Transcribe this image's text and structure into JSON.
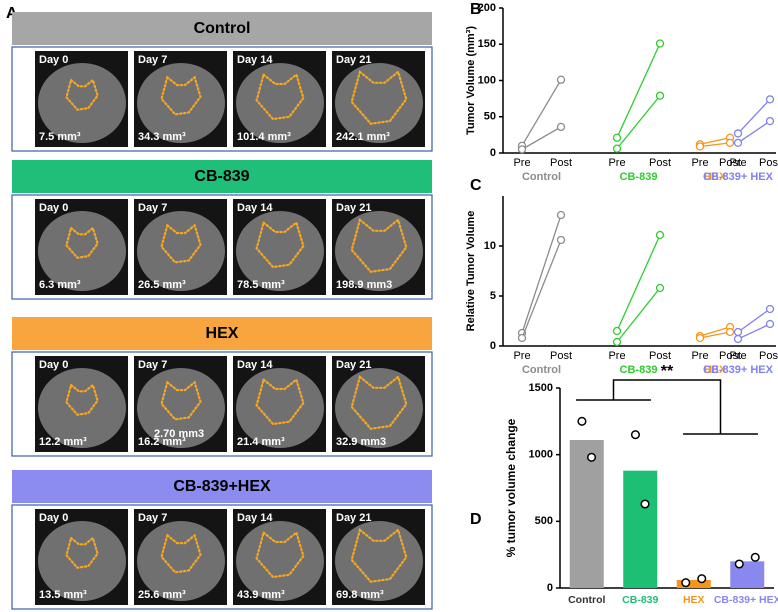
{
  "panel_labels": [
    "A",
    "B",
    "C",
    "D"
  ],
  "panel_a": {
    "groups": [
      {
        "title": "Control",
        "color": "#a6a6a6",
        "images": [
          {
            "day": "Day 0",
            "volume": "7.5 mm³"
          },
          {
            "day": "Day 7",
            "volume": "34.3 mm³"
          },
          {
            "day": "Day 14",
            "volume": "101.4 mm³"
          },
          {
            "day": "Day 21",
            "volume": "242.1 mm³"
          }
        ]
      },
      {
        "title": "CB-839",
        "color": "#1fbf7a",
        "images": [
          {
            "day": "Day 0",
            "volume": "6.3 mm³"
          },
          {
            "day": "Day 7",
            "volume": "26.5 mm³"
          },
          {
            "day": "Day 14",
            "volume": "78.5 mm³"
          },
          {
            "day": "Day 21",
            "volume": "198.9 mm3"
          }
        ]
      },
      {
        "title": "HEX",
        "color": "#f9a53f",
        "images": [
          {
            "day": "Day 0",
            "volume": "12.2 mm³"
          },
          {
            "day": "Day 7",
            "volume": "16.2 mm³",
            "overlay": "2.70 mm3"
          },
          {
            "day": "Day 14",
            "volume": "21.4 mm³"
          },
          {
            "day": "Day 21",
            "volume": "32.9 mm3"
          }
        ]
      },
      {
        "title": "CB-839+HEX",
        "color": "#8c8cf0",
        "images": [
          {
            "day": "Day 0",
            "volume": "13.5 mm³"
          },
          {
            "day": "Day 7",
            "volume": "25.6 mm³"
          },
          {
            "day": "Day 14",
            "volume": "43.9 mm³"
          },
          {
            "day": "Day 21",
            "volume": "69.8 mm³"
          }
        ]
      }
    ]
  },
  "chart_data": [
    {
      "type": "paired",
      "ylabel": "Tumor Volume (mm³)",
      "categories": [
        "Pre",
        "Post"
      ],
      "ylim": [
        0,
        200
      ],
      "yticks": [
        0,
        50,
        100,
        150,
        200
      ],
      "groups": [
        {
          "name": "Control",
          "color": "#8c8c8c",
          "pre": [
            10,
            5
          ],
          "post": [
            101,
            36
          ]
        },
        {
          "name": "CB-839",
          "color": "#2ecc2e",
          "pre": [
            21,
            6
          ],
          "post": [
            151,
            79
          ]
        },
        {
          "name": "HEX",
          "color": "#f7941d",
          "pre": [
            12,
            9
          ],
          "post": [
            21,
            14
          ]
        },
        {
          "name": "CB-839+ HEX",
          "color": "#8080f0",
          "pre": [
            27,
            14
          ],
          "post": [
            74,
            44
          ]
        }
      ]
    },
    {
      "type": "paired",
      "ylabel": "Relative Tumor Volume",
      "categories": [
        "Pre",
        "Post"
      ],
      "ylim": [
        0,
        15
      ],
      "yticks": [
        0,
        5,
        10
      ],
      "groups": [
        {
          "name": "Control",
          "color": "#8c8c8c",
          "pre": [
            1.3,
            0.8
          ],
          "post": [
            13.1,
            10.6
          ]
        },
        {
          "name": "CB-839",
          "color": "#2ecc2e",
          "pre": [
            1.5,
            0.4
          ],
          "post": [
            11.1,
            5.8
          ]
        },
        {
          "name": "HEX",
          "color": "#f7941d",
          "pre": [
            1.0,
            0.8
          ],
          "post": [
            1.9,
            1.4
          ]
        },
        {
          "name": "CB-839+ HEX",
          "color": "#8080f0",
          "pre": [
            1.4,
            0.7
          ],
          "post": [
            3.7,
            2.2
          ]
        }
      ]
    },
    {
      "type": "bar",
      "ylabel": "% tumor volume change",
      "categories": [
        "Control",
        "CB-839",
        "HEX",
        "CB-839+ HEX"
      ],
      "colors": [
        "#a0a0a0",
        "#1dbf73",
        "#f7941d",
        "#8888ee"
      ],
      "values": [
        1110,
        880,
        60,
        200
      ],
      "points": [
        [
          1250,
          980
        ],
        [
          1150,
          630
        ],
        [
          70,
          40
        ],
        [
          230,
          180
        ]
      ],
      "ylim": [
        0,
        1500
      ],
      "yticks": [
        0,
        500,
        1000,
        1500
      ],
      "annotation": "**"
    }
  ]
}
